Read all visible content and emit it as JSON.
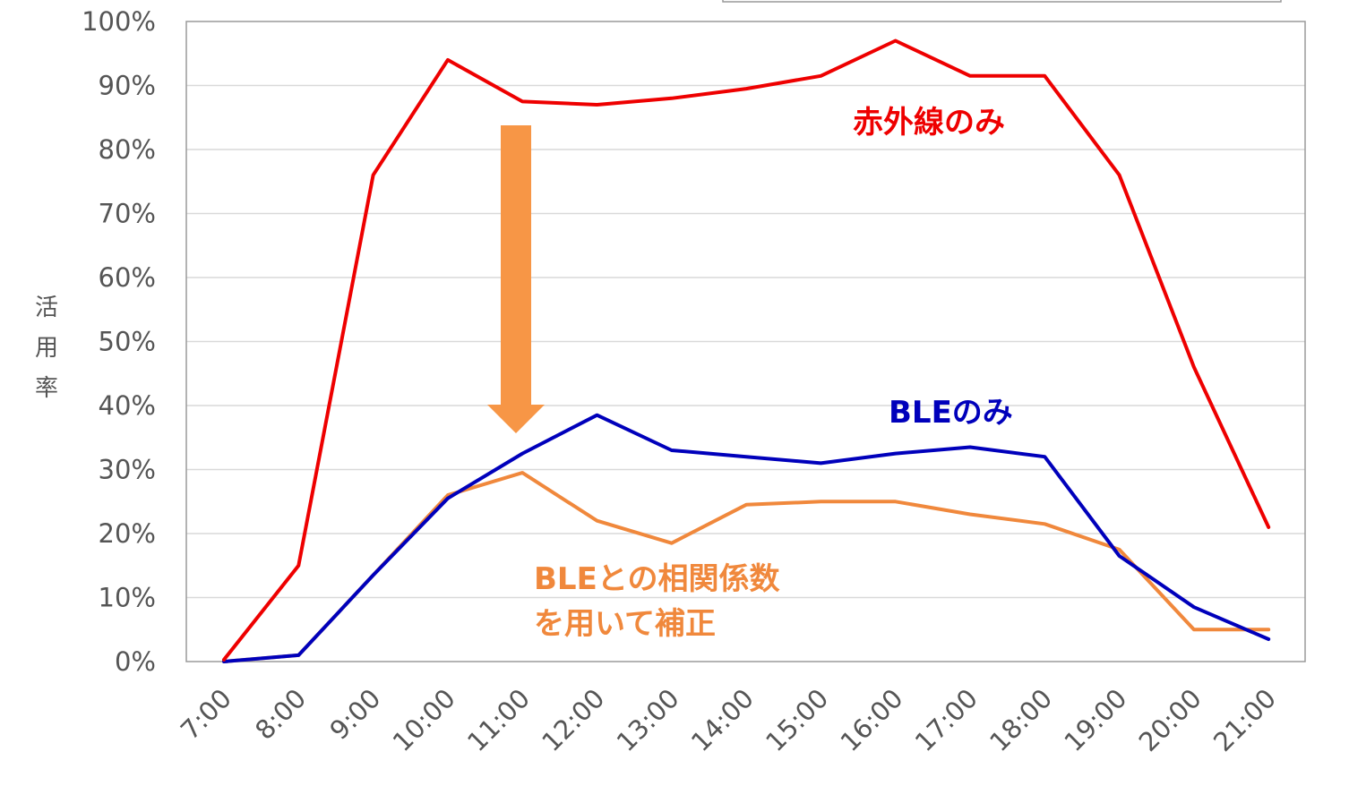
{
  "chart_data": {
    "type": "line",
    "categories": [
      "7:00",
      "8:00",
      "9:00",
      "10:00",
      "11:00",
      "12:00",
      "13:00",
      "14:00",
      "15:00",
      "16:00",
      "17:00",
      "18:00",
      "19:00",
      "20:00",
      "21:00"
    ],
    "ylabel": "活用率",
    "ylim": [
      0,
      100
    ],
    "yticks": [
      "0%",
      "10%",
      "20%",
      "30%",
      "40%",
      "50%",
      "60%",
      "70%",
      "80%",
      "90%",
      "100%"
    ],
    "grid": true,
    "series": [
      {
        "name": "赤外線のみ",
        "color": "#ee0000",
        "values": [
          0.3,
          15,
          76,
          94,
          87.5,
          87,
          88,
          89.5,
          91.5,
          97,
          91.5,
          91.5,
          76,
          46,
          21
        ]
      },
      {
        "name": "BLEのみ",
        "color": "#0000bb",
        "values": [
          0,
          1,
          13.5,
          25.5,
          32.5,
          38.5,
          33,
          32,
          31,
          32.5,
          33.5,
          32,
          16.5,
          8.5,
          3.5
        ]
      },
      {
        "name": "BLEとの相関係数を用いて補正",
        "color": "#f0883c",
        "values": [
          0,
          1,
          13.5,
          26,
          29.5,
          22,
          18.5,
          24.5,
          25,
          25,
          23,
          21.5,
          17.5,
          5,
          5
        ]
      }
    ],
    "annotations": {
      "ir_label": "赤外線のみ",
      "ble_label": "BLEのみ",
      "corrected_label_line1": "BLEとの相関係数",
      "corrected_label_line2": "を用いて補正",
      "arrow_color": "#f79646"
    }
  }
}
